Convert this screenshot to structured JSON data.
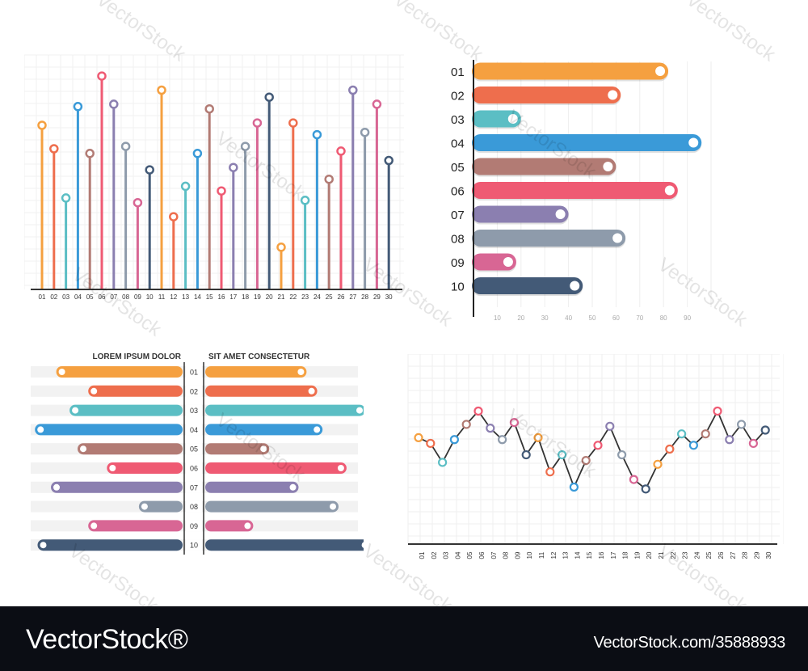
{
  "palette": [
    "#f5a040",
    "#ee6e4d",
    "#5bbec4",
    "#3a9ad8",
    "#b27b74",
    "#ef5a73",
    "#8b7fb0",
    "#8e9bab",
    "#d86694",
    "#435a77"
  ],
  "charts": {
    "lollipop": {
      "x_labels": [
        "01",
        "02",
        "03",
        "04",
        "05",
        "06",
        "07",
        "08",
        "09",
        "10",
        "11",
        "12",
        "13",
        "14",
        "15",
        "16",
        "17",
        "18",
        "19",
        "20",
        "21",
        "22",
        "23",
        "24",
        "25",
        "26",
        "27",
        "28",
        "29",
        "30"
      ]
    },
    "hbar": {
      "categories": [
        "01",
        "02",
        "03",
        "04",
        "05",
        "06",
        "07",
        "08",
        "09",
        "10"
      ],
      "x_ticks": [
        "10",
        "20",
        "30",
        "40",
        "50",
        "60",
        "70",
        "80",
        "90"
      ]
    },
    "butterfly": {
      "left_title": "LOREM IPSUM DOLOR",
      "right_title": "SIT AMET CONSECTETUR",
      "categories": [
        "01",
        "02",
        "03",
        "04",
        "05",
        "06",
        "07",
        "08",
        "09",
        "10"
      ]
    },
    "line": {
      "x_labels": [
        "01",
        "02",
        "03",
        "04",
        "05",
        "06",
        "07",
        "08",
        "09",
        "10",
        "11",
        "12",
        "13",
        "14",
        "15",
        "16",
        "17",
        "18",
        "19",
        "20",
        "21",
        "22",
        "23",
        "24",
        "25",
        "26",
        "27",
        "28",
        "29",
        "30"
      ]
    }
  },
  "chart_data": [
    {
      "type": "bar",
      "subtype": "lollipop-vertical",
      "categories": [
        "01",
        "02",
        "03",
        "04",
        "05",
        "06",
        "07",
        "08",
        "09",
        "10",
        "11",
        "12",
        "13",
        "14",
        "15",
        "16",
        "17",
        "18",
        "19",
        "20",
        "21",
        "22",
        "23",
        "24",
        "25",
        "26",
        "27",
        "28",
        "29",
        "30"
      ],
      "values": [
        70,
        60,
        39,
        78,
        58,
        91,
        79,
        61,
        37,
        51,
        85,
        31,
        44,
        58,
        77,
        42,
        52,
        61,
        71,
        82,
        18,
        71,
        38,
        66,
        47,
        59,
        85,
        67,
        79,
        55
      ],
      "ylim": [
        0,
        100
      ],
      "grid": true
    },
    {
      "type": "bar",
      "subtype": "horizontal",
      "categories": [
        "01",
        "02",
        "03",
        "04",
        "05",
        "06",
        "07",
        "08",
        "09",
        "10"
      ],
      "values": [
        82,
        62,
        20,
        96,
        60,
        86,
        40,
        64,
        18,
        46
      ],
      "xticks": [
        10,
        20,
        30,
        40,
        50,
        60,
        70,
        80,
        90
      ],
      "xlim": [
        0,
        100
      ],
      "grid": true
    },
    {
      "type": "bar",
      "subtype": "butterfly",
      "categories": [
        "01",
        "02",
        "03",
        "04",
        "05",
        "06",
        "07",
        "08",
        "09",
        "10"
      ],
      "series": [
        {
          "name": "LOREM IPSUM DOLOR",
          "values": [
            48,
            36,
            43,
            56,
            40,
            29,
            50,
            17,
            36,
            55
          ]
        },
        {
          "name": "SIT AMET CONSECTETUR",
          "values": [
            38,
            42,
            60,
            44,
            24,
            53,
            35,
            50,
            18,
            62
          ]
        }
      ]
    },
    {
      "type": "line",
      "x": [
        "01",
        "02",
        "03",
        "04",
        "05",
        "06",
        "07",
        "08",
        "09",
        "10",
        "11",
        "12",
        "13",
        "14",
        "15",
        "16",
        "17",
        "18",
        "19",
        "20",
        "21",
        "22",
        "23",
        "24",
        "25",
        "26",
        "27",
        "28",
        "29",
        "30"
      ],
      "values": [
        56,
        53,
        43,
        55,
        63,
        70,
        61,
        55,
        64,
        47,
        56,
        38,
        47,
        30,
        44,
        52,
        62,
        47,
        34,
        29,
        42,
        50,
        58,
        52,
        58,
        70,
        55,
        63,
        53,
        60
      ],
      "ylim": [
        0,
        100
      ],
      "grid": true
    }
  ],
  "watermark": "VectorStock",
  "footer": {
    "logo": "VectorStock®",
    "image_id": "VectorStock.com/35888933"
  }
}
